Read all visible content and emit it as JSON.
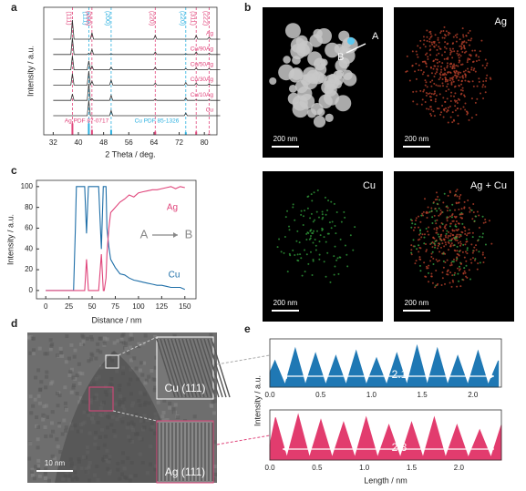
{
  "panel_labels": [
    "a",
    "b",
    "c",
    "d",
    "e"
  ],
  "chart_data": [
    {
      "type": "line",
      "xlabel": "2 Theta / deg.",
      "ylabel": "Intensity / a.u.",
      "xlim": [
        29,
        84
      ],
      "ylim": [
        0,
        100
      ],
      "xticks": [
        32,
        40,
        48,
        56,
        64,
        72,
        80
      ],
      "x": [
        32,
        37.6,
        38.1,
        38.6,
        42.8,
        43.3,
        43.8,
        44.3,
        44.8,
        49.9,
        50.4,
        50.9,
        63.9,
        64.4,
        64.9,
        73.6,
        74.1,
        74.6,
        76.9,
        77.4,
        77.9,
        81,
        81.5,
        82,
        85
      ],
      "label_color": "#e0457b",
      "series": [
        {
          "name": "Ag",
          "color": "#333333",
          "values": [
            75,
            75,
            90,
            75,
            75,
            75,
            75,
            80,
            75,
            75,
            75,
            75,
            75,
            78,
            75,
            75,
            75,
            75,
            75,
            78,
            75,
            75,
            76.5,
            75,
            75
          ]
        },
        {
          "name": "Cu/90Ag",
          "color": "#333333",
          "values": [
            63,
            63,
            76,
            63,
            63,
            64,
            63,
            67,
            63,
            63,
            63.5,
            63,
            63,
            65,
            63,
            63,
            63.5,
            63,
            63,
            65,
            63,
            63,
            64,
            63,
            63
          ]
        },
        {
          "name": "Cu/50Ag",
          "color": "#333333",
          "values": [
            51,
            51,
            62,
            51,
            51,
            58,
            51,
            54,
            51,
            51,
            53,
            51,
            51,
            53,
            51,
            51,
            52,
            51,
            51,
            52.5,
            51,
            51,
            52,
            51,
            51
          ]
        },
        {
          "name": "Cu/30Ag",
          "color": "#333333",
          "values": [
            39,
            39,
            48,
            39,
            39,
            50,
            39,
            42,
            39,
            39,
            43,
            39,
            39,
            40.5,
            39,
            39,
            41,
            39,
            39,
            40.5,
            39,
            39,
            40,
            39,
            39
          ]
        },
        {
          "name": "Cu/10Ag",
          "color": "#333333",
          "values": [
            27,
            27,
            32,
            27,
            27,
            40,
            27,
            28.5,
            27,
            27,
            31,
            27,
            27,
            28,
            27,
            27,
            29,
            27,
            27,
            27.5,
            27,
            27,
            27.5,
            27,
            27
          ]
        },
        {
          "name": "Cu",
          "color": "#333333",
          "values": [
            15,
            15,
            15,
            15,
            15,
            27,
            15,
            15,
            15,
            15,
            19,
            15,
            15,
            15,
            15,
            15,
            17,
            15,
            15,
            15,
            15,
            15,
            15,
            15,
            15
          ]
        }
      ],
      "peaks": [
        {
          "label": "(111)",
          "x": 38.1,
          "color": "#e0457b"
        },
        {
          "label": "(111)",
          "x": 43.3,
          "color": "#2bb0e0"
        },
        {
          "label": "(200)",
          "x": 44.3,
          "color": "#e0457b"
        },
        {
          "label": "(200)",
          "x": 50.4,
          "color": "#2bb0e0"
        },
        {
          "label": "(220)",
          "x": 64.4,
          "color": "#e0457b"
        },
        {
          "label": "(220)",
          "x": 74.1,
          "color": "#2bb0e0"
        },
        {
          "label": "(311)",
          "x": 77.4,
          "color": "#e0457b"
        },
        {
          "label": "(222)",
          "x": 81.5,
          "color": "#e0457b"
        }
      ],
      "references": [
        {
          "name": "Ag PDF 87-0717",
          "color": "#e0457b",
          "x": [
            38.1,
            44.3,
            64.4,
            77.4,
            81.5
          ],
          "values": [
            9,
            4,
            2.5,
            2.5,
            1
          ]
        },
        {
          "name": "Cu PDF 85-1326",
          "color": "#2bb0e0",
          "x": [
            43.3,
            50.4,
            74.1
          ],
          "values": [
            9,
            4,
            2
          ]
        }
      ]
    },
    {
      "type": "line",
      "xlabel": "Distance / nm",
      "ylabel": "Intensity / a.u.",
      "xlim": [
        -10,
        162
      ],
      "ylim": [
        -8,
        106
      ],
      "xticks": [
        0,
        25,
        50,
        75,
        100,
        125,
        150
      ],
      "yticks": [
        0,
        20,
        40,
        60,
        80,
        100
      ],
      "x": [
        0,
        30,
        32,
        33,
        40,
        42,
        44,
        46,
        48,
        50,
        52,
        55,
        57,
        60,
        62,
        63,
        65,
        66,
        68,
        70,
        75,
        80,
        85,
        90,
        95,
        100,
        105,
        110,
        115,
        120,
        125,
        130,
        135,
        140,
        145,
        150
      ],
      "series": [
        {
          "name": "Cu",
          "color": "#1f6fa8",
          "values": [
            0,
            0,
            60,
            100,
            100,
            100,
            55,
            100,
            100,
            100,
            100,
            100,
            100,
            40,
            100,
            100,
            100,
            60,
            42,
            30,
            22,
            16,
            15,
            12,
            10,
            9,
            8,
            7,
            6,
            5,
            5,
            4,
            3,
            3,
            3,
            1
          ]
        },
        {
          "name": "Ag",
          "color": "#e0457b",
          "values": [
            0,
            0,
            0,
            0,
            0,
            0,
            30,
            0,
            0,
            0,
            0,
            0,
            0,
            35,
            0,
            0,
            12,
            35,
            60,
            75,
            80,
            85,
            88,
            92,
            90,
            94,
            95,
            96,
            97,
            97,
            98,
            99,
            100,
            98,
            100,
            99
          ]
        }
      ],
      "annotations": [
        "A",
        "B"
      ]
    },
    {
      "type": "area",
      "ylabel": "Intensity / a.u.",
      "xlim": [
        0,
        2.28
      ],
      "ylim": [
        0,
        1
      ],
      "xticks": [
        {
          "value": 0,
          "label": "0.0"
        },
        0.5,
        {
          "value": 1,
          "label": "1.0"
        },
        1.5,
        {
          "value": 2,
          "label": "2.0"
        }
      ],
      "x": [
        0,
        0.05,
        0.15,
        0.25,
        0.35,
        0.45,
        0.55,
        0.65,
        0.75,
        0.85,
        0.95,
        1.05,
        1.15,
        1.25,
        1.35,
        1.45,
        1.55,
        1.65,
        1.75,
        1.85,
        1.95,
        2.05,
        2.15,
        2.25
      ],
      "series": [
        {
          "color": "#1f78b4",
          "values": [
            0.3,
            0.55,
            0.05,
            0.8,
            0.05,
            0.7,
            0.05,
            0.65,
            0.05,
            0.75,
            0.05,
            0.6,
            0.05,
            0.7,
            0.05,
            0.85,
            0.05,
            0.8,
            0.05,
            0.65,
            0.05,
            0.75,
            0.05,
            0.55
          ]
        }
      ],
      "spacing_label": "2.1"
    },
    {
      "type": "area",
      "xlabel": "Length / nm",
      "xlim": [
        0,
        2.45
      ],
      "ylim": [
        0,
        1
      ],
      "xticks": [
        {
          "value": 0,
          "label": "0.0"
        },
        0.5,
        {
          "value": 1,
          "label": "1.0"
        },
        1.5,
        {
          "value": 2,
          "label": "2.0"
        }
      ],
      "x": [
        0,
        0.06,
        0.18,
        0.3,
        0.42,
        0.54,
        0.66,
        0.78,
        0.9,
        1.02,
        1.14,
        1.26,
        1.38,
        1.5,
        1.62,
        1.74,
        1.86,
        1.98,
        2.1,
        2.22,
        2.34,
        2.45
      ],
      "series": [
        {
          "color": "#e23c6e",
          "values": [
            0.3,
            0.85,
            0.05,
            0.9,
            0.05,
            0.8,
            0.05,
            0.75,
            0.05,
            0.85,
            0.05,
            0.7,
            0.05,
            0.75,
            0.05,
            0.85,
            0.05,
            0.7,
            0.05,
            0.6,
            0.05,
            0.7
          ]
        }
      ],
      "spacing_label": "2.3"
    }
  ],
  "eds_maps": {
    "markers": [
      "A",
      "B"
    ],
    "labels": [
      "Ag",
      "Cu",
      "Ag + Cu"
    ],
    "scale_bar": "200 nm"
  },
  "tem": {
    "scale_bar": "10 nm",
    "insets": [
      "Cu (111)",
      "Ag (111)"
    ]
  }
}
